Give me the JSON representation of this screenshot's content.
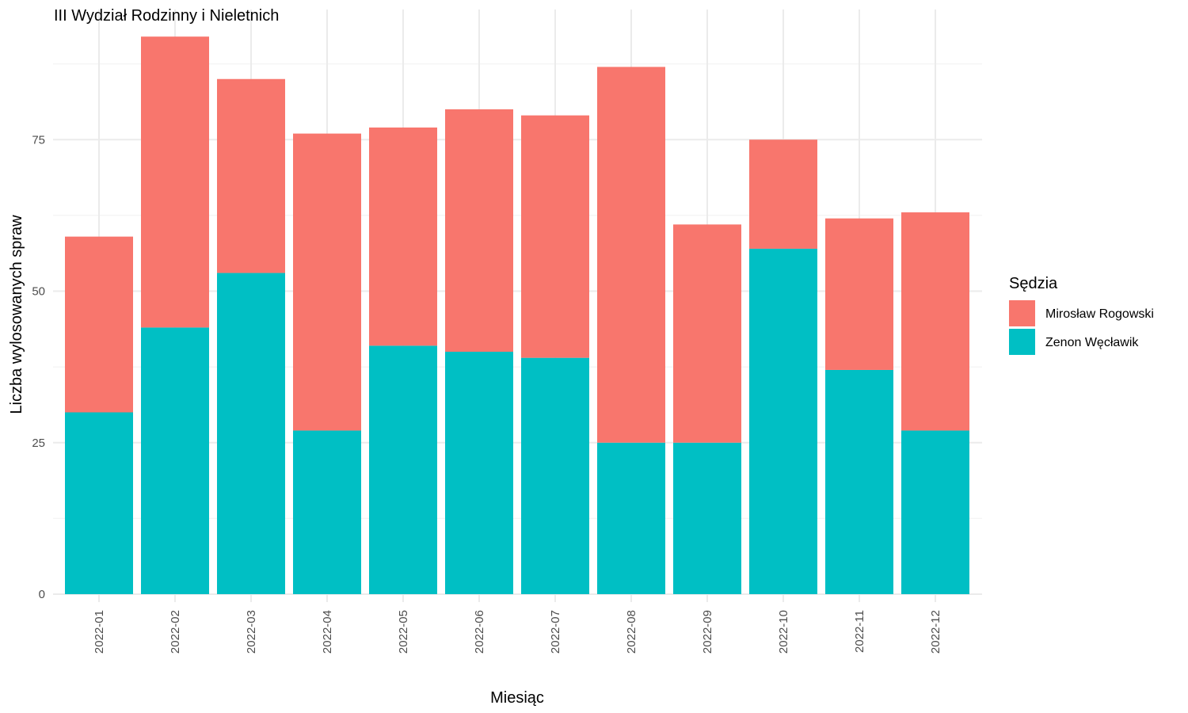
{
  "chart_data": {
    "type": "bar",
    "stacked": true,
    "title": "III Wydział Rodzinny i Nieletnich",
    "xlabel": "Miesiąc",
    "ylabel": "Liczba wylosowanych spraw",
    "ylim": [
      0,
      92
    ],
    "yticks": [
      0,
      25,
      50,
      75
    ],
    "grid": true,
    "legend": {
      "title": "Sędzia",
      "position": "right"
    },
    "categories": [
      "2022-01",
      "2022-02",
      "2022-03",
      "2022-04",
      "2022-05",
      "2022-06",
      "2022-07",
      "2022-08",
      "2022-09",
      "2022-10",
      "2022-11",
      "2022-12"
    ],
    "series": [
      {
        "name": "Zenon Węcławik",
        "color": "#00BFC4",
        "values": [
          30,
          44,
          53,
          27,
          41,
          40,
          39,
          25,
          25,
          57,
          37,
          27
        ]
      },
      {
        "name": "Mirosław Rogowski",
        "color": "#F8766D",
        "values": [
          29,
          48,
          32,
          49,
          36,
          40,
          40,
          62,
          36,
          18,
          25,
          36
        ]
      }
    ],
    "legend_order": [
      "Mirosław Rogowski",
      "Zenon Węcławik"
    ]
  }
}
